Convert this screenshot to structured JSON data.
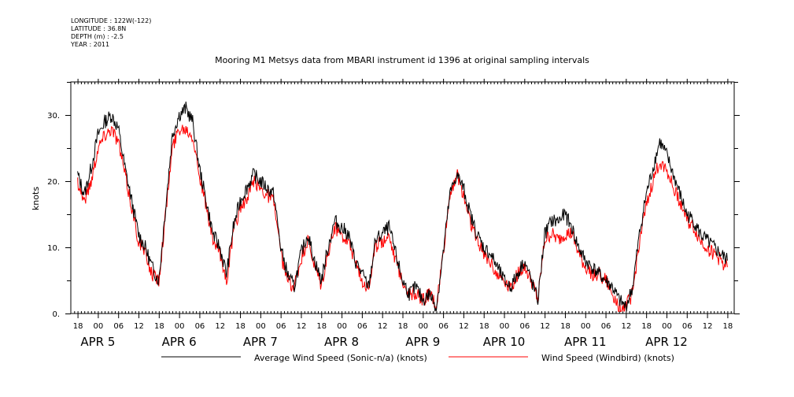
{
  "header": {
    "meta_lines": [
      "LONGITUDE : 122W(-122)",
      "LATITUDE : 36.8N",
      "DEPTH (m) : -2.5",
      "YEAR : 2011"
    ]
  },
  "chart_data": {
    "type": "line",
    "title": "Mooring M1 Metsys data from MBARI instrument id 1396 at original sampling intervals",
    "ylabel": "knots",
    "xlabel": "",
    "ylim": [
      0,
      35
    ],
    "xlim_hours_from_apr5_00": [
      -8,
      86
    ],
    "y_ticks": [
      0,
      10,
      20,
      30
    ],
    "y_tick_labels": [
      "0.",
      "10.",
      "20.",
      "30."
    ],
    "x_hour_ticks": [
      -6,
      0,
      6,
      12,
      18,
      24,
      30,
      36,
      42,
      48,
      54,
      60,
      66,
      72,
      78,
      84,
      90,
      96,
      102,
      108,
      114,
      120,
      126,
      132,
      138,
      144,
      150,
      156,
      162,
      168,
      174,
      180,
      186
    ],
    "x_hour_labels": [
      "18",
      "00",
      "06",
      "12",
      "18",
      "00",
      "06",
      "12",
      "18",
      "00",
      "06",
      "12",
      "18",
      "00",
      "06",
      "12",
      "18",
      "00",
      "06",
      "12",
      "18",
      "00",
      "06",
      "12",
      "18",
      "00",
      "06",
      "12",
      "18",
      "00",
      "06",
      "12",
      "18"
    ],
    "x_day_labels": [
      {
        "text": "APR  5",
        "hour": 0
      },
      {
        "text": "APR  6",
        "hour": 24
      },
      {
        "text": "APR  7",
        "hour": 48
      },
      {
        "text": "APR  8",
        "hour": 72
      },
      {
        "text": "APR  9",
        "hour": 96
      },
      {
        "text": "APR 10",
        "hour": 120
      },
      {
        "text": "APR 11",
        "hour": 144
      },
      {
        "text": "APR 12",
        "hour": 168
      }
    ],
    "x_units": "hours since APR 5 00:00 (2011)",
    "series": [
      {
        "name": "Average Wind Speed (Sonic-n/a) (knots)",
        "color": "#000000",
        "x": [
          -6,
          -4,
          -2,
          0,
          2,
          4,
          6,
          8,
          10,
          12,
          14,
          16,
          18,
          20,
          22,
          24,
          26,
          28,
          30,
          32,
          34,
          36,
          38,
          40,
          42,
          44,
          46,
          48,
          50,
          52,
          54,
          56,
          58,
          60,
          62,
          64,
          66,
          68,
          70,
          72,
          74,
          76,
          78,
          80,
          82,
          84,
          86,
          88,
          90,
          92,
          94,
          96,
          98,
          100,
          102,
          104,
          106,
          108,
          110,
          112,
          114,
          116,
          118,
          120,
          122,
          124,
          126,
          128,
          130,
          132,
          134,
          136,
          138,
          140,
          142,
          144,
          146,
          148,
          150,
          152,
          154,
          156,
          158,
          160,
          162,
          164,
          166,
          168,
          170,
          172,
          174,
          176,
          178,
          180,
          182,
          184,
          186
        ],
        "y": [
          21,
          18,
          22,
          27,
          29,
          30,
          28,
          22,
          17,
          12,
          10,
          7,
          5,
          16,
          27,
          30,
          31,
          29,
          22,
          17,
          12,
          10,
          6,
          13,
          17,
          19,
          21,
          20,
          19,
          18,
          10,
          6,
          4,
          9,
          12,
          8,
          5,
          10,
          14,
          13,
          12,
          8,
          6,
          4,
          11,
          12,
          13,
          9,
          5,
          3,
          4,
          2,
          3,
          1,
          9,
          18,
          21,
          19,
          15,
          12,
          10,
          9,
          7,
          5,
          4,
          6,
          8,
          5,
          2,
          12,
          14,
          14,
          15,
          13,
          10,
          8,
          7,
          6,
          5,
          4,
          2,
          1,
          4,
          12,
          18,
          22,
          26,
          24,
          21,
          18,
          15,
          14,
          12,
          11,
          10,
          9,
          8
        ],
        "x_note": "x given as hours relative to APR 5 00:00"
      },
      {
        "name": "Wind Speed (Windbird) (knots)",
        "color": "#ff0000",
        "x": [
          -6,
          -4,
          -2,
          0,
          2,
          4,
          6,
          8,
          10,
          12,
          14,
          16,
          18,
          20,
          22,
          24,
          26,
          28,
          30,
          32,
          34,
          36,
          38,
          40,
          42,
          44,
          46,
          48,
          50,
          52,
          54,
          56,
          58,
          60,
          62,
          64,
          66,
          68,
          70,
          72,
          74,
          76,
          78,
          80,
          82,
          84,
          86,
          88,
          90,
          92,
          94,
          96,
          98,
          100,
          102,
          104,
          106,
          108,
          110,
          112,
          114,
          116,
          118,
          120,
          122,
          124,
          126,
          128,
          130,
          132,
          134,
          136,
          138,
          140,
          142,
          144,
          146,
          148,
          150,
          152,
          154,
          156,
          158,
          160,
          162,
          164,
          166,
          168,
          170,
          172,
          174,
          176,
          178,
          180,
          182,
          184,
          186
        ],
        "y": [
          20,
          17,
          20,
          25,
          27,
          28,
          26,
          21,
          16,
          11,
          9,
          6,
          5,
          15,
          25,
          28,
          28,
          27,
          21,
          16,
          11,
          9,
          5,
          12,
          16,
          17,
          20,
          19,
          18,
          17,
          9,
          5,
          4,
          8,
          11,
          7,
          4,
          9,
          13,
          12,
          11,
          8,
          5,
          4,
          10,
          11,
          12,
          8,
          5,
          3,
          3,
          2,
          3,
          1,
          9,
          18,
          21,
          18,
          14,
          11,
          9,
          8,
          6,
          5,
          4,
          6,
          7,
          5,
          2,
          11,
          12,
          11,
          12,
          12,
          9,
          7,
          6,
          6,
          5,
          3,
          1,
          1,
          3,
          11,
          16,
          20,
          23,
          22,
          19,
          17,
          14,
          13,
          11,
          10,
          9,
          8,
          7
        ],
        "x_note": "x given as hours relative to APR 5 00:00"
      }
    ],
    "legend_placement": "bottom",
    "grid": false
  }
}
